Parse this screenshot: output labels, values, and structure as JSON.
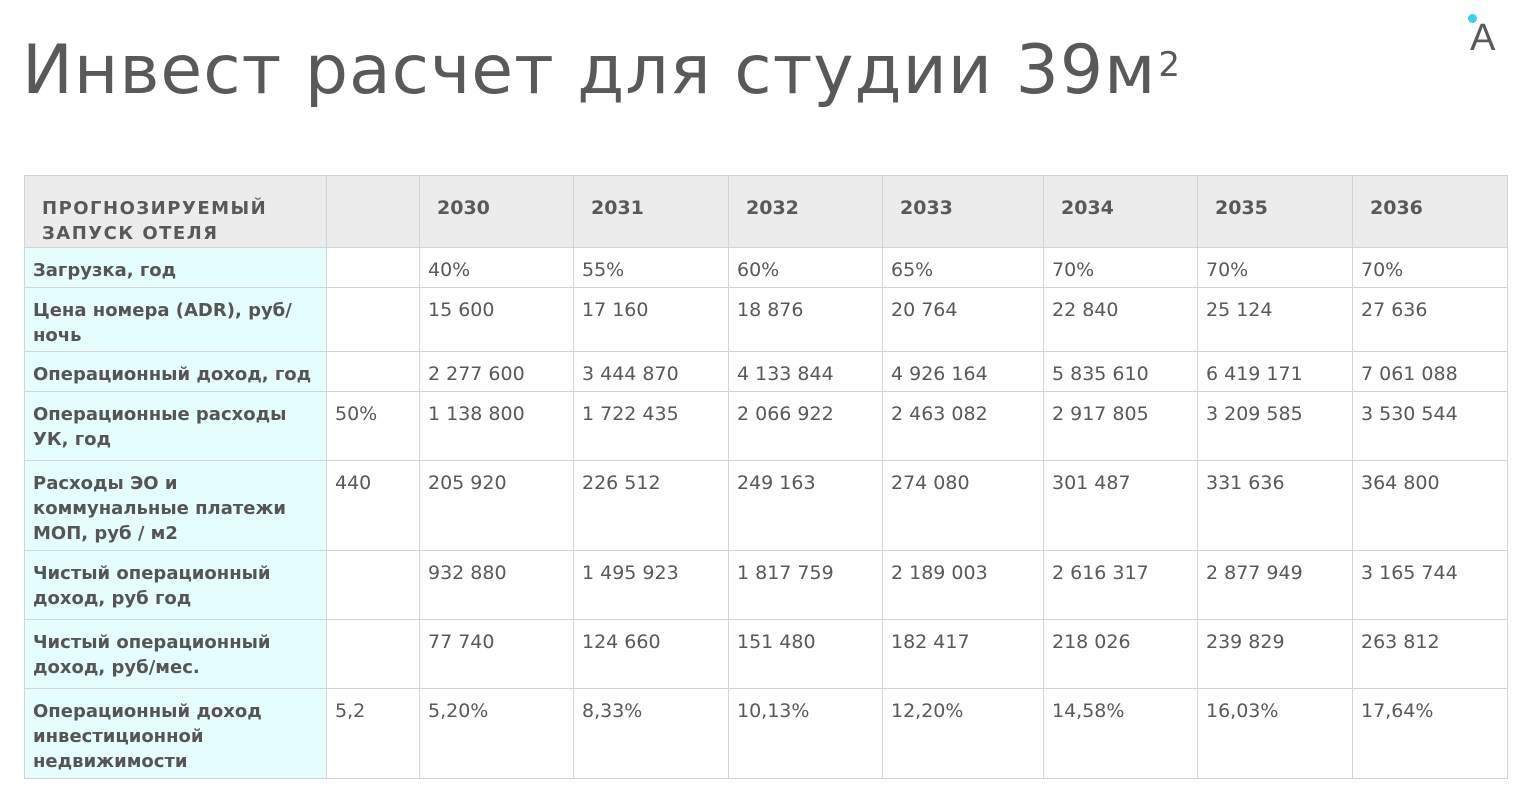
{
  "title": {
    "text": "Инвест расчет для студии 39м",
    "sup": "2"
  },
  "logo": {
    "letter": "A",
    "accent_color": "#2fd6e8",
    "icon": "brand-logo-icon"
  },
  "table": {
    "corner_label": "ПРОГНОЗИРУЕМЫЙ ЗАПУСК ОТЕЛЯ",
    "years": [
      "2030",
      "2031",
      "2032",
      "2033",
      "2034",
      "2035",
      "2036"
    ],
    "rows": [
      {
        "label": "Загрузка, год",
        "param": "",
        "values": [
          "40%",
          "55%",
          "60%",
          "65%",
          "70%",
          "70%",
          "70%"
        ]
      },
      {
        "label": "Цена номера (ADR), руб/ночь",
        "param": "",
        "values": [
          "15 600",
          "17 160",
          "18 876",
          "20 764",
          "22 840",
          "25 124",
          "27 636"
        ]
      },
      {
        "label": "Операционный доход, год",
        "param": "",
        "values": [
          "2 277 600",
          "3 444 870",
          "4 133 844",
          "4 926 164",
          "5 835 610",
          "6 419 171",
          "7 061 088"
        ]
      },
      {
        "label": "Операционные расходы УК, год",
        "param": "50%",
        "values": [
          "1 138 800",
          "1 722 435",
          "2 066 922",
          "2 463 082",
          "2 917 805",
          "3 209 585",
          "3 530 544"
        ]
      },
      {
        "label": "Расходы ЭО и коммунальные платежи МОП, руб / м2",
        "param": "440",
        "values": [
          "205 920",
          "226 512",
          "249 163",
          "274 080",
          "301 487",
          "331 636",
          "364 800"
        ]
      },
      {
        "label": "Чистый операционный доход, руб год",
        "param": "",
        "values": [
          "932 880",
          "1 495 923",
          "1 817 759",
          "2 189 003",
          "2 616 317",
          "2 877 949",
          "3 165 744"
        ]
      },
      {
        "label": "Чистый операционный доход, руб/мес.",
        "param": "",
        "values": [
          "77 740",
          "124 660",
          "151 480",
          "182 417",
          "218 026",
          "239 829",
          "263 812"
        ]
      },
      {
        "label": "Операционный доход инвестиционной недвижимости",
        "param": "5,2",
        "values": [
          "5,20%",
          "8,33%",
          "10,13%",
          "12,20%",
          "14,58%",
          "16,03%",
          "17,64%"
        ]
      }
    ]
  }
}
